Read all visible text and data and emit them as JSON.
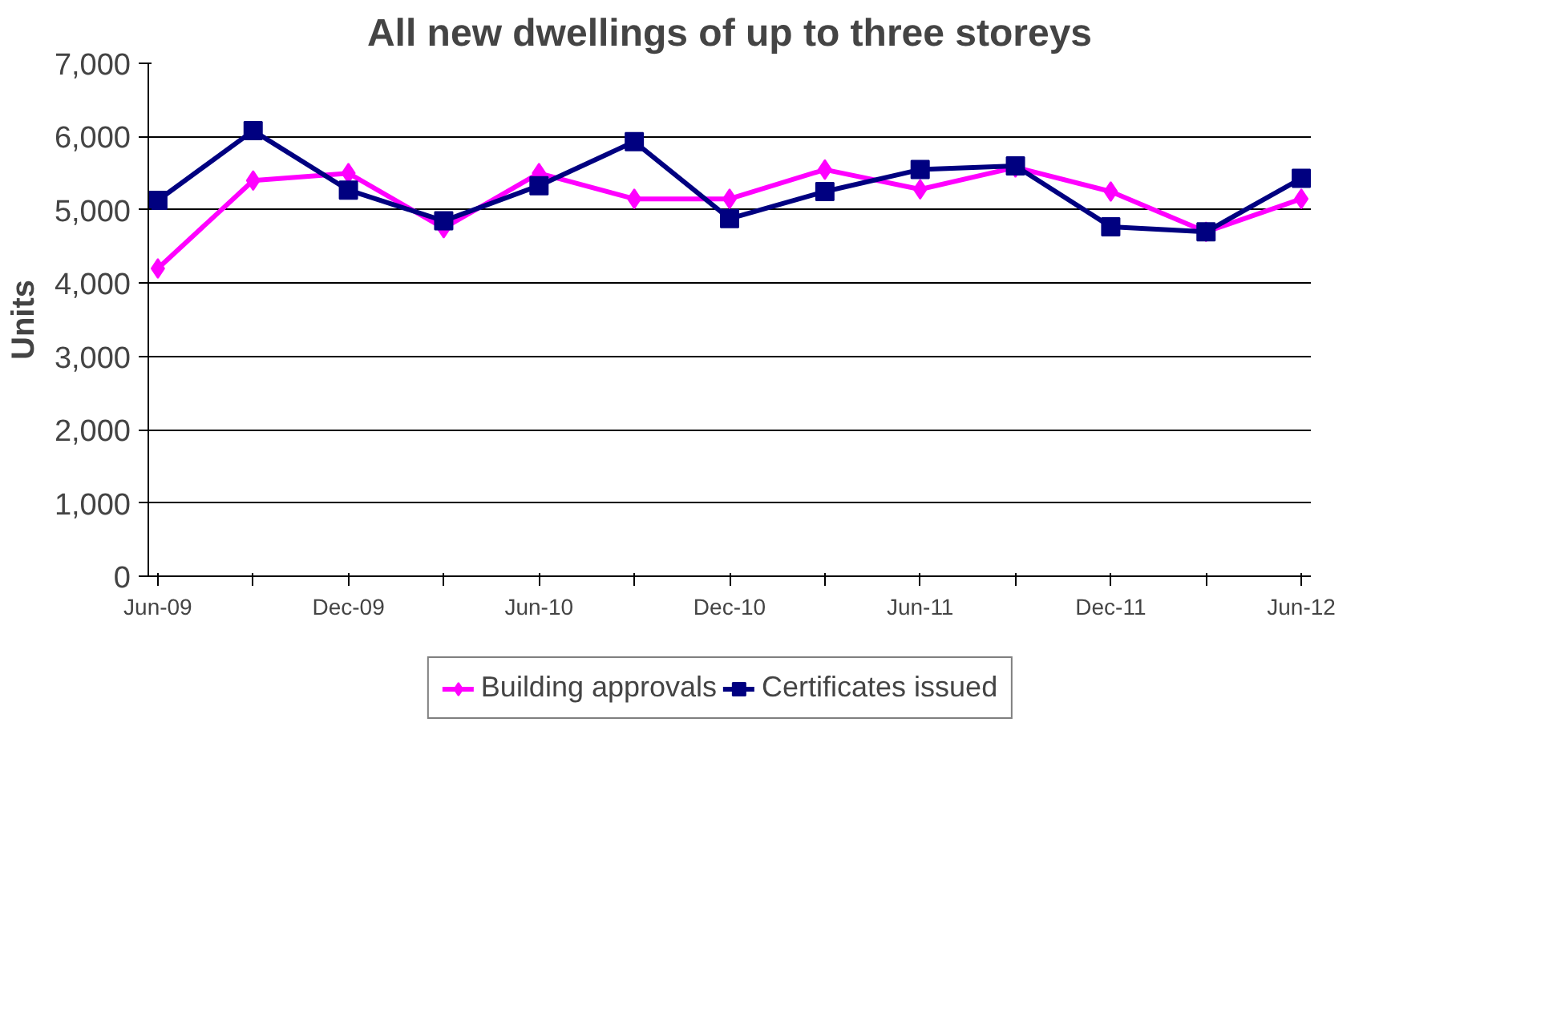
{
  "chart_data": {
    "type": "line",
    "title": "All new dwellings of up to three storeys",
    "ylabel": "Units",
    "categories": [
      "Jun-09",
      null,
      "Dec-09",
      null,
      "Jun-10",
      null,
      "Dec-10",
      null,
      "Jun-11",
      null,
      "Dec-11",
      null,
      "Jun-12"
    ],
    "series": [
      {
        "name": "Building approvals",
        "color": "#ff00ff",
        "marker": "diamond",
        "values": [
          4200,
          5400,
          5500,
          4750,
          5500,
          5150,
          5150,
          5550,
          5280,
          5580,
          5250,
          4700,
          5150
        ]
      },
      {
        "name": "Certificates issued",
        "color": "#000080",
        "marker": "square",
        "values": [
          5130,
          6080,
          5270,
          4850,
          5330,
          5930,
          4880,
          5250,
          5550,
          5600,
          4770,
          4700,
          5430
        ]
      }
    ],
    "ylim": [
      0,
      7000
    ],
    "yticks": [
      {
        "value": 0,
        "label": "0"
      },
      {
        "value": 1000,
        "label": "1,000"
      },
      {
        "value": 2000,
        "label": "2,000"
      },
      {
        "value": 3000,
        "label": "3,000"
      },
      {
        "value": 4000,
        "label": "4,000"
      },
      {
        "value": 5000,
        "label": "5,000"
      },
      {
        "value": 6000,
        "label": "6,000"
      },
      {
        "value": 7000,
        "label": "7,000"
      }
    ],
    "grid": "y",
    "legend": "bottom",
    "line_style": "solid"
  }
}
